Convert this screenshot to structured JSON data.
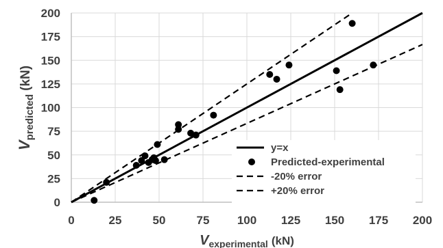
{
  "chart_data": {
    "type": "scatter",
    "xlabel": {
      "main": "V",
      "sub": "experimental",
      "unit": "(kN)"
    },
    "ylabel": {
      "main": "V",
      "sub": "predicted",
      "unit": "(kN)"
    },
    "xlim": [
      0,
      200
    ],
    "ylim": [
      0,
      200
    ],
    "xticks": [
      "0",
      "25",
      "50",
      "75",
      "100",
      "125",
      "150",
      "175",
      "200"
    ],
    "yticks": [
      "0",
      "25",
      "50",
      "75",
      "100",
      "125",
      "150",
      "175",
      "200"
    ],
    "grid": true,
    "legend_position": "bottom-right",
    "series": [
      {
        "name": "Predicted-experimental",
        "kind": "scatter",
        "color": "#000000",
        "points": [
          [
            13,
            2
          ],
          [
            20,
            21
          ],
          [
            37,
            39
          ],
          [
            40,
            44
          ],
          [
            42,
            49
          ],
          [
            44,
            42
          ],
          [
            46,
            45
          ],
          [
            47,
            47
          ],
          [
            48,
            44
          ],
          [
            49,
            61
          ],
          [
            53,
            45
          ],
          [
            61,
            82
          ],
          [
            61,
            77
          ],
          [
            68,
            73
          ],
          [
            71,
            71
          ],
          [
            81,
            92
          ],
          [
            113,
            135
          ],
          [
            117,
            130
          ],
          [
            124,
            145
          ],
          [
            151,
            139
          ],
          [
            153,
            119
          ],
          [
            160,
            189
          ],
          [
            172,
            145
          ]
        ]
      },
      {
        "name": "y=x",
        "kind": "line",
        "style": "solid",
        "color": "#000000",
        "slope": 1.0,
        "x_range": [
          0,
          200
        ]
      },
      {
        "name": "-20% error",
        "kind": "line",
        "style": "dashed",
        "color": "#000000",
        "slope": 0.8333,
        "x_range": [
          0,
          200
        ]
      },
      {
        "name": "+20% error",
        "kind": "line",
        "style": "dashed",
        "color": "#000000",
        "slope": 1.25,
        "x_range": [
          0,
          160
        ]
      }
    ],
    "legend": [
      {
        "label": "y=x",
        "symbol": "solid-line"
      },
      {
        "label": "Predicted-experimental",
        "symbol": "dot"
      },
      {
        "label": "-20% error",
        "symbol": "dashed-line"
      },
      {
        "label": "+20% error",
        "symbol": "dashed-line"
      }
    ]
  }
}
